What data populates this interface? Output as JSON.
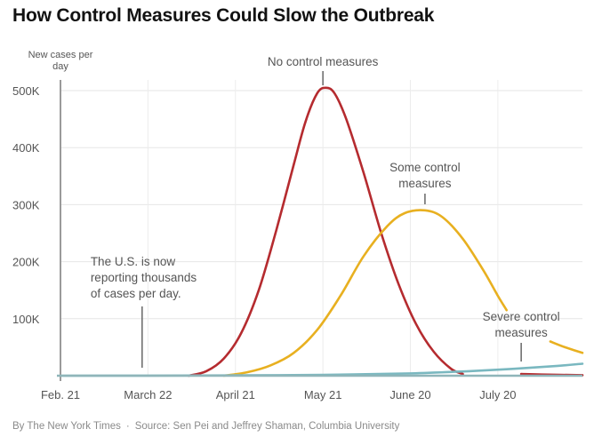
{
  "chart_data": {
    "type": "line",
    "title": "How Control Measures Could Slow the Outbreak",
    "ylabel": "New cases per day",
    "xlabel": "",
    "x_tick_labels": [
      "Feb. 21",
      "March 22",
      "April 21",
      "May 21",
      "June 20",
      "July 20"
    ],
    "x_tick_days": [
      0,
      30,
      60,
      90,
      120,
      150
    ],
    "xlim_days": [
      0,
      179
    ],
    "y_tick_labels": [
      "100K",
      "200K",
      "300K",
      "400K",
      "500K"
    ],
    "y_ticks": [
      100000,
      200000,
      300000,
      400000,
      500000
    ],
    "ylim": [
      0,
      500000
    ],
    "grid": true,
    "series": [
      {
        "name": "No control measures",
        "color": "#b52b2f",
        "points": [
          [
            44,
            0
          ],
          [
            50,
            8000
          ],
          [
            56,
            30000
          ],
          [
            62,
            75000
          ],
          [
            68,
            150000
          ],
          [
            74,
            255000
          ],
          [
            80,
            370000
          ],
          [
            84,
            445000
          ],
          [
            88,
            495000
          ],
          [
            91,
            505000
          ],
          [
            94,
            495000
          ],
          [
            98,
            450000
          ],
          [
            104,
            355000
          ],
          [
            110,
            250000
          ],
          [
            116,
            160000
          ],
          [
            122,
            90000
          ],
          [
            128,
            42000
          ],
          [
            134,
            12000
          ],
          [
            138,
            3000
          ]
        ]
      },
      {
        "name": "No control measures (tail)",
        "color": "#b52b2f",
        "points": [
          [
            158,
            3000
          ],
          [
            165,
            2000
          ],
          [
            179,
            1000
          ]
        ]
      },
      {
        "name": "Some control measures",
        "color": "#e8b020",
        "points": [
          [
            56,
            0
          ],
          [
            64,
            6000
          ],
          [
            72,
            18000
          ],
          [
            80,
            40000
          ],
          [
            88,
            80000
          ],
          [
            96,
            140000
          ],
          [
            104,
            210000
          ],
          [
            112,
            262000
          ],
          [
            118,
            285000
          ],
          [
            125,
            290000
          ],
          [
            131,
            278000
          ],
          [
            138,
            240000
          ],
          [
            145,
            185000
          ],
          [
            150,
            140000
          ],
          [
            153,
            115000
          ]
        ]
      },
      {
        "name": "Some control measures (tail)",
        "color": "#e8b020",
        "points": [
          [
            168,
            60000
          ],
          [
            173,
            50000
          ],
          [
            179,
            40000
          ]
        ]
      },
      {
        "name": "Severe control measures",
        "color": "#7ab8c0",
        "points": [
          [
            0,
            0
          ],
          [
            30,
            200
          ],
          [
            60,
            600
          ],
          [
            90,
            1500
          ],
          [
            120,
            4000
          ],
          [
            140,
            8000
          ],
          [
            155,
            12000
          ],
          [
            170,
            17000
          ],
          [
            179,
            21000
          ]
        ]
      }
    ],
    "annotations": [
      {
        "text": [
          "No control measures"
        ],
        "x_day": 90,
        "y": 505000
      },
      {
        "text": [
          "Some control",
          "measures"
        ],
        "x_day": 125,
        "y": 290000
      },
      {
        "text": [
          "Severe control",
          "measures"
        ],
        "x_day": 158,
        "y": 12000
      },
      {
        "text": [
          "The U.S. is now",
          "reporting thousands",
          "of cases per day."
        ],
        "x_day": 28,
        "y": 0
      }
    ]
  },
  "credit": {
    "byline": "By The New York Times",
    "separator": "·",
    "source": "Source: Sen Pei and Jeffrey Shaman, Columbia University"
  }
}
